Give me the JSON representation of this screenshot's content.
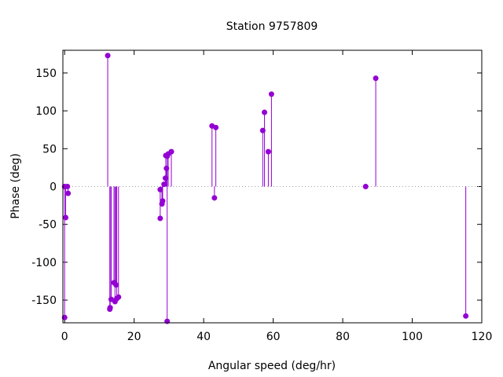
{
  "chart_data": {
    "type": "scatter",
    "style": "impulses with points",
    "title": "Station 9757809",
    "xlabel": "Angular speed (deg/hr)",
    "ylabel": "Phase (deg)",
    "xlim": [
      -0.5,
      120
    ],
    "ylim": [
      -180,
      180
    ],
    "xticks": [
      0,
      20,
      40,
      60,
      80,
      100,
      120
    ],
    "yticks": [
      -150,
      -100,
      -50,
      0,
      50,
      100,
      150
    ],
    "zero_line": true,
    "grid": false,
    "color": "#9400d3",
    "points": [
      [
        0.0,
        -173
      ],
      [
        0.0,
        0
      ],
      [
        0.3,
        -41
      ],
      [
        0.8,
        0
      ],
      [
        1.0,
        -9
      ],
      [
        12.4,
        173
      ],
      [
        13.0,
        -162
      ],
      [
        13.1,
        -160
      ],
      [
        13.4,
        -149
      ],
      [
        14.2,
        -127
      ],
      [
        14.8,
        -130
      ],
      [
        14.5,
        -152
      ],
      [
        15.0,
        -148
      ],
      [
        15.5,
        -146
      ],
      [
        27.5,
        -42
      ],
      [
        27.5,
        -4
      ],
      [
        28.0,
        -23
      ],
      [
        28.2,
        -19
      ],
      [
        28.6,
        3
      ],
      [
        29.0,
        11
      ],
      [
        29.3,
        24
      ],
      [
        29.1,
        41
      ],
      [
        29.5,
        40
      ],
      [
        29.8,
        43
      ],
      [
        29.5,
        -178
      ],
      [
        30.7,
        46
      ],
      [
        42.4,
        80
      ],
      [
        43.1,
        -15
      ],
      [
        43.5,
        78
      ],
      [
        57.0,
        74
      ],
      [
        57.5,
        98
      ],
      [
        58.6,
        46
      ],
      [
        59.5,
        122
      ],
      [
        86.6,
        0
      ],
      [
        89.5,
        143
      ],
      [
        115.4,
        -171
      ]
    ]
  }
}
